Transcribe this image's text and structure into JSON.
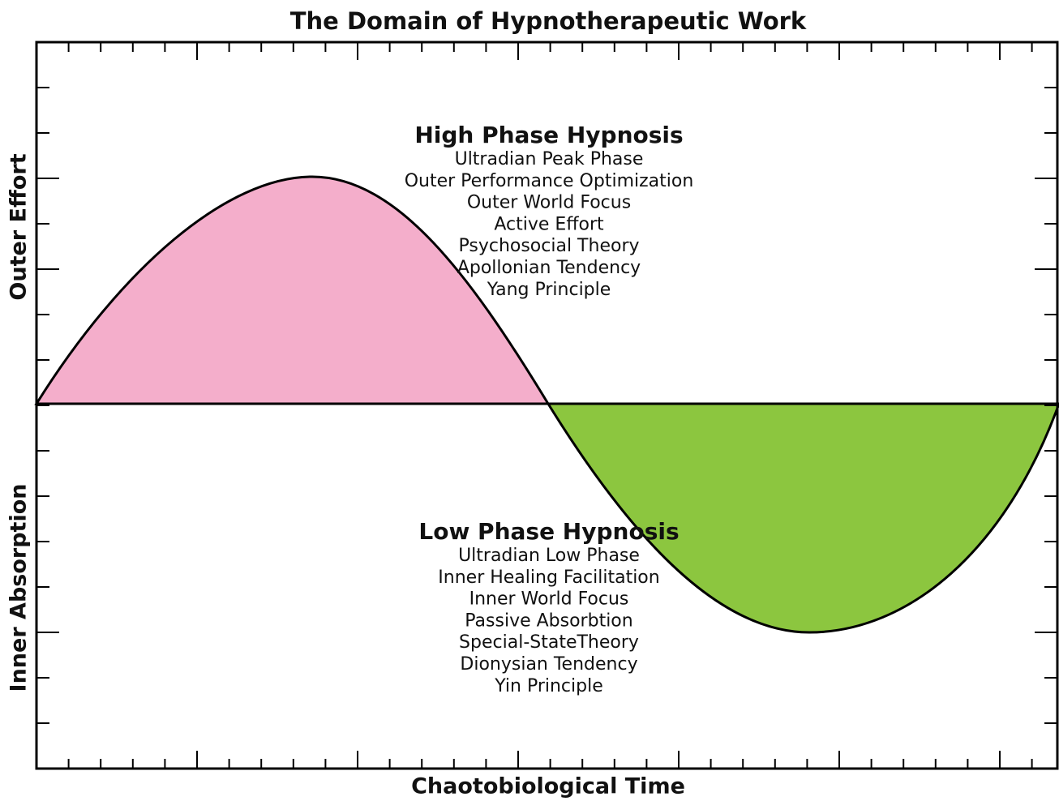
{
  "title": "The Domain of Hypnotherapeutic Work",
  "x_axis_label": "Chaotobiological Time",
  "y_axis_labels": {
    "upper": "Outer Effort",
    "lower": "Inner Absorption"
  },
  "high_phase": {
    "heading": "High Phase Hypnosis",
    "lines": [
      "Ultradian Peak Phase",
      "Outer Performance Optimization",
      "Outer World Focus",
      "Active Effort",
      "Psychosocial Theory",
      "Apollonian Tendency",
      "Yang Principle"
    ]
  },
  "low_phase": {
    "heading": "Low Phase Hypnosis",
    "lines": [
      "Ultradian Low Phase",
      "Inner Healing Facilitation",
      "Inner World Focus",
      "Passive Absorbtion",
      "Special-StateTheory",
      "Dionysian Tendency",
      "Yin Principle"
    ]
  }
}
